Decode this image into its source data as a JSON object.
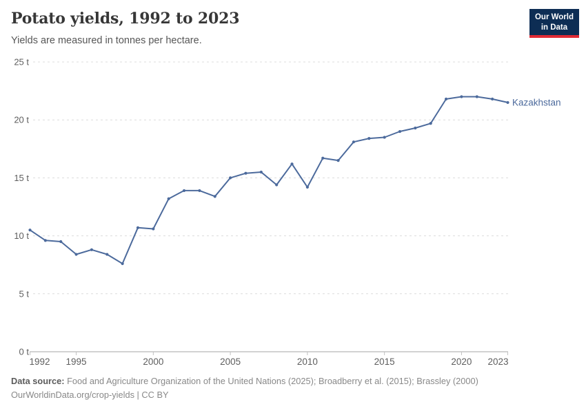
{
  "header": {
    "title": "Potato yields, 1992 to 2023",
    "subtitle": "Yields are measured in tonnes per hectare.",
    "logo": {
      "line1": "Our World",
      "line2": "in Data"
    }
  },
  "chart_data": {
    "type": "line",
    "title": "Potato yields, 1992 to 2023",
    "subtitle": "Yields are measured in tonnes per hectare.",
    "xlabel": "",
    "ylabel": "tonnes per hectare",
    "unit_suffix": " t",
    "ylim": [
      0,
      25
    ],
    "yticks": [
      0,
      5,
      10,
      15,
      20,
      25
    ],
    "xticks": [
      1992,
      1995,
      2000,
      2005,
      2010,
      2015,
      2020,
      2023
    ],
    "grid": "horizontal-dashed",
    "legend_position": "end-of-line-label",
    "x": [
      1992,
      1993,
      1994,
      1995,
      1996,
      1997,
      1998,
      1999,
      2000,
      2001,
      2002,
      2003,
      2004,
      2005,
      2006,
      2007,
      2008,
      2009,
      2010,
      2011,
      2012,
      2013,
      2014,
      2015,
      2016,
      2017,
      2018,
      2019,
      2020,
      2021,
      2022,
      2023
    ],
    "series": [
      {
        "name": "Kazakhstan",
        "color": "#4c6a9c",
        "values": [
          10.5,
          9.6,
          9.5,
          8.4,
          8.8,
          8.4,
          7.6,
          10.7,
          10.6,
          13.2,
          13.9,
          13.9,
          13.4,
          15.0,
          15.4,
          15.5,
          14.4,
          16.2,
          14.2,
          16.7,
          16.5,
          18.1,
          18.4,
          18.5,
          19.0,
          19.3,
          19.7,
          21.8,
          22.0,
          22.0,
          21.8,
          21.5
        ]
      }
    ]
  },
  "footer": {
    "source_label": "Data source:",
    "source_text": "Food and Agriculture Organization of the United Nations (2025); Broadberry et al. (2015); Brassley (2000)",
    "link_line": "OurWorldinData.org/crop-yields | CC BY"
  },
  "colors": {
    "series_blue": "#4c6a9c",
    "logo_navy": "#0d2d54",
    "logo_red": "#e02b35",
    "gridline": "#dcdcdc",
    "axis_line": "#a5a5a5",
    "tick_mark": "#c0c0c0",
    "axis_label": "#5e5e5e"
  }
}
